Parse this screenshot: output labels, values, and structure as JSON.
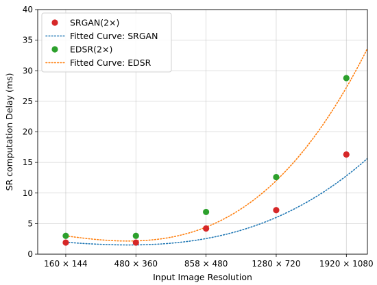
{
  "chart_data": {
    "type": "scatter",
    "xlabel": "Input Image Resolution",
    "ylabel": "SR computation Delay (ms)",
    "categories": [
      "160 × 144",
      "480 × 360",
      "858 × 480",
      "1280 × 720",
      "1920 × 1080"
    ],
    "xlim": [
      -0.4,
      4.3
    ],
    "ylim": [
      0,
      40
    ],
    "yticks": [
      0,
      5,
      10,
      15,
      20,
      25,
      30,
      35,
      40
    ],
    "grid": true,
    "legend_position": "top-left",
    "series": [
      {
        "name": "SRGAN(2×)",
        "kind": "scatter",
        "color": "#d62728",
        "values": [
          1.9,
          1.9,
          4.2,
          7.2,
          16.3
        ]
      },
      {
        "name": "Fitted Curve: SRGAN",
        "kind": "fit",
        "color": "#1f77b4",
        "coef": [
          1.95,
          -0.855,
          0.2645,
          0.157
        ],
        "range": [
          0,
          4.3
        ]
      },
      {
        "name": "EDSR(2×)",
        "kind": "scatter",
        "color": "#2ca02c",
        "values": [
          3.0,
          3.0,
          6.9,
          12.6,
          28.8
        ]
      },
      {
        "name": "Fitted Curve: EDSR",
        "kind": "fit",
        "color": "#ff7f0e",
        "coef": [
          3.0,
          -1.617,
          0.4095,
          0.3775
        ],
        "range": [
          0,
          4.3
        ]
      }
    ]
  }
}
